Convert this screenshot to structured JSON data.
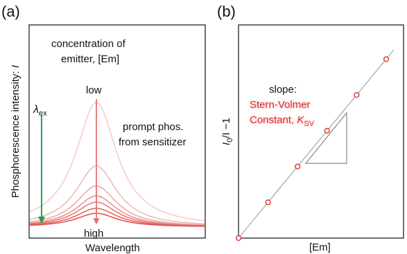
{
  "chart_data": [
    {
      "type": "line",
      "panel_label": "(a)",
      "xlabel": "Wavelength",
      "ylabel": "Phosphorescence intensity: ",
      "ylabel_symbol": "I",
      "annotations": {
        "concentration_line1": "concentration of",
        "concentration_line2": "emitter, [Em]",
        "low": "low",
        "high": "high",
        "prompt_line1": "prompt phos.",
        "prompt_line2": "from sensitizer",
        "excitation_symbol": "λ",
        "excitation_subscript": "ex"
      },
      "series_peak_heights": [
        1.0,
        0.49,
        0.33,
        0.25,
        0.2,
        0.15,
        0.11
      ],
      "series_colors": [
        "#f6cccc",
        "#f3b8b8",
        "#f0a6a6",
        "#ec9090",
        "#e87878",
        "#e46464",
        "#e05555"
      ],
      "colors": {
        "arrow_concentration": "#e87070",
        "arrow_excitation": "#1aa64a"
      }
    },
    {
      "type": "scatter",
      "panel_label": "(b)",
      "xlabel": "[Em]",
      "ylabel_main": "I",
      "ylabel_sub": "0",
      "ylabel_rest": "/I −1",
      "x": [
        0,
        1,
        2,
        3,
        4,
        5
      ],
      "y": [
        0,
        1,
        2,
        3,
        4,
        5
      ],
      "annotations": {
        "slope_line1": "slope:",
        "slope_line2": "Stern-Volmer",
        "slope_line3_text": "Constant, ",
        "slope_symbol": "K",
        "slope_subscript": "SV"
      },
      "colors": {
        "marker": "#dd3333",
        "fit_line": "#aaaaaa",
        "slope_text": "#d22222"
      }
    }
  ]
}
